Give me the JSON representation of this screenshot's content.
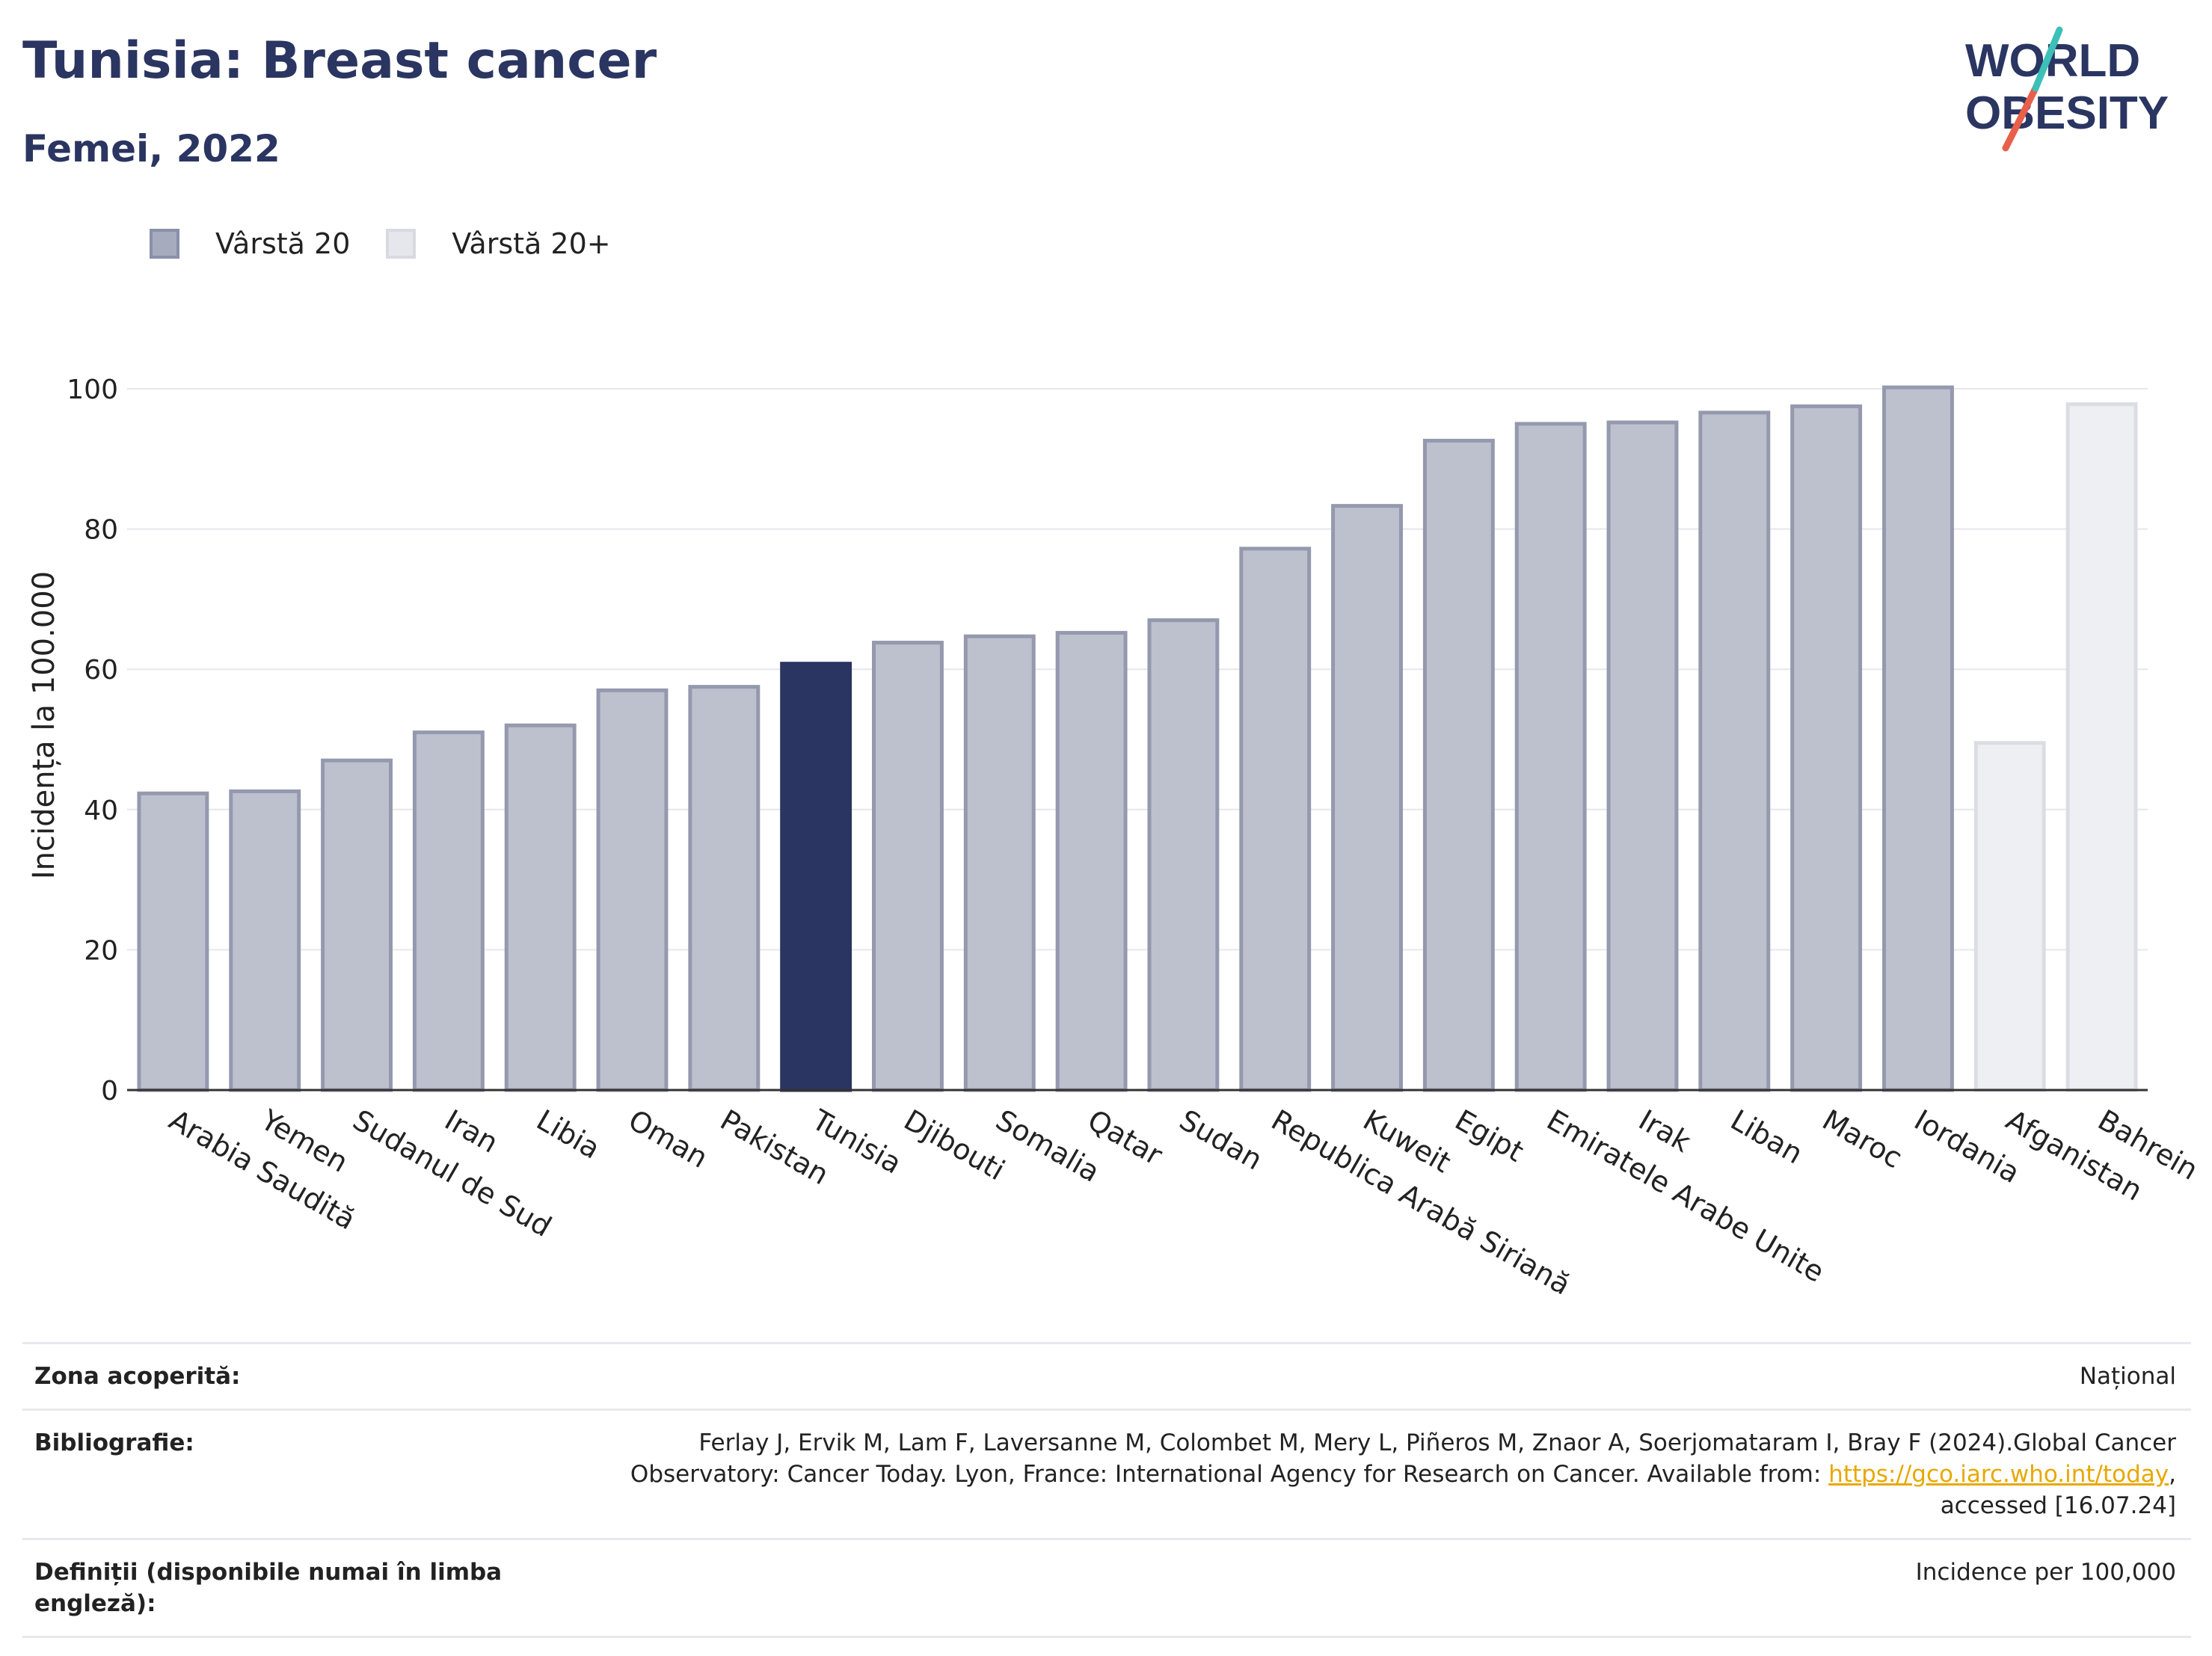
{
  "header": {
    "title": "Tunisia: Breast cancer",
    "subtitle": "Femei, 2022",
    "logo_line1": "WORLD",
    "logo_line2": "OBESITY"
  },
  "legend": [
    {
      "label": "Vârstă 20",
      "color": "#a6abbe",
      "border": "#8990aa"
    },
    {
      "label": "Vârstă 20+",
      "color": "#e6e7ec",
      "border": "#d9dae1"
    }
  ],
  "colors": {
    "highlight": "#2a3561",
    "age20_fill": "#bdc0cd",
    "age20_border": "#9599ae",
    "age20plus_fill": "#eeeff2",
    "age20plus_border": "#dcdde3",
    "grid": "#e6e7ee",
    "text": "#222222"
  },
  "chart_data": {
    "type": "bar",
    "ylabel": "Incidența la 100.000",
    "xlabel": "",
    "ylim": [
      0,
      100
    ],
    "yticks": [
      0,
      20,
      40,
      60,
      80,
      100
    ],
    "grid": true,
    "legend_position": "top-left",
    "highlight": "Tunisia",
    "categories": [
      "Arabia Saudită",
      "Yemen",
      "Sudanul de Sud",
      "Iran",
      "Libia",
      "Oman",
      "Pakistan",
      "Tunisia",
      "Djibouti",
      "Somalia",
      "Qatar",
      "Sudan",
      "Republica Arabă Siriană",
      "Kuweit",
      "Egipt",
      "Emiratele Arabe Unite",
      "Irak",
      "Liban",
      "Maroc",
      "Iordania",
      "Afganistan",
      "Bahrein"
    ],
    "values": [
      42.3,
      42.6,
      47.0,
      51.0,
      52.0,
      57.0,
      57.5,
      60.8,
      63.8,
      64.7,
      65.2,
      67.0,
      77.2,
      83.3,
      92.6,
      95.0,
      95.2,
      96.6,
      97.5,
      100.2,
      49.5,
      97.8
    ],
    "series_group": [
      "Vârstă 20",
      "Vârstă 20",
      "Vârstă 20",
      "Vârstă 20",
      "Vârstă 20",
      "Vârstă 20",
      "Vârstă 20",
      "Vârstă 20",
      "Vârstă 20",
      "Vârstă 20",
      "Vârstă 20",
      "Vârstă 20",
      "Vârstă 20",
      "Vârstă 20",
      "Vârstă 20",
      "Vârstă 20",
      "Vârstă 20",
      "Vârstă 20",
      "Vârstă 20",
      "Vârstă 20",
      "Vârstă 20+",
      "Vârstă 20+"
    ]
  },
  "info": {
    "area_label": "Zona acoperită:",
    "area_value": "Național",
    "biblio_label": "Bibliografie:",
    "biblio_text1": "Ferlay J, Ervik M, Lam F, Laversanne M, Colombet M, Mery L, Piñeros M, Znaor A, Soerjomataram I, Bray F (2024).Global Cancer Observatory: Cancer Today. Lyon, France: International Agency for Research on Cancer. Available from: ",
    "biblio_link": "https://gco.iarc.who.int/today",
    "biblio_text2": ", accessed [16.07.24]",
    "def_label": "Definiții (disponibile numai în limba engleză):",
    "def_value": "Incidence per 100,000"
  }
}
